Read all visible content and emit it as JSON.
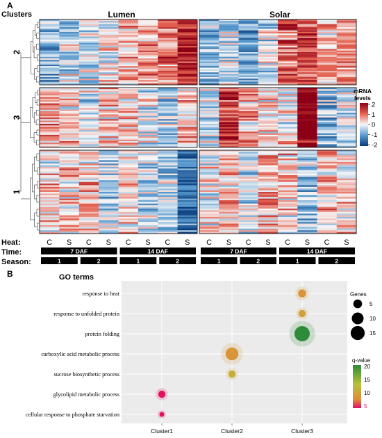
{
  "panel_a": {
    "label": "A",
    "clusters_title": "Clusters",
    "group_titles": [
      "Lumen",
      "Solar"
    ],
    "row_clusters": [
      {
        "label": "2",
        "rows": 42
      },
      {
        "label": "3",
        "rows": 38
      },
      {
        "label": "1",
        "rows": 50
      }
    ],
    "heat_label": "Heat:",
    "time_label": "Time:",
    "season_label": "Season:",
    "heat_values": [
      "C",
      "S",
      "C",
      "S",
      "C",
      "S",
      "C",
      "S"
    ],
    "time_values": [
      "7 DAF",
      "14 DAF"
    ],
    "season_values": [
      "1",
      "2",
      "1",
      "2"
    ],
    "legend": {
      "title_line1": "mRNA",
      "title_line2": "levels",
      "ticks": [
        "2",
        "1",
        "0",
        "-1",
        "-2"
      ],
      "colors": {
        "high": "#8b0016",
        "mid": "#f7f7f7",
        "low": "#0a3d7c"
      }
    },
    "column_bias": {
      "Lumen": {
        "2": [
          -0.6,
          -0.3,
          -0.4,
          0.1,
          0.3,
          0.6,
          0.7,
          1.3
        ],
        "3": [
          0.5,
          0.3,
          -0.2,
          0.3,
          0.2,
          -0.1,
          -0.5,
          0.3
        ],
        "1": [
          0.2,
          0.3,
          0.3,
          -0.4,
          0.2,
          -0.3,
          -0.4,
          -1.2
        ]
      },
      "Solar": {
        "2": [
          -0.5,
          -0.3,
          -0.7,
          -0.2,
          0.9,
          1.0,
          0.4,
          0.5
        ],
        "3": [
          -0.2,
          1.2,
          0.4,
          0.1,
          0.1,
          1.8,
          -0.6,
          -0.3
        ],
        "1": [
          0.1,
          0.4,
          -0.2,
          0.3,
          0.2,
          -0.5,
          0.3,
          0.1
        ]
      }
    }
  },
  "panel_b": {
    "label": "B",
    "go_title": "GO terms",
    "chart_data": {
      "type": "scatter",
      "title": "GO terms",
      "categories_x": [
        "Cluster1",
        "Cluster2",
        "Cluster3"
      ],
      "categories_y": [
        "response to heat",
        "response to unfolded protein",
        "protein folding",
        "carboxylic acid metabolic process",
        "sucrose biosynthetic process",
        "glycolipid metabolic process",
        "cellular response to phosphate starvation"
      ],
      "points": [
        {
          "x": "Cluster3",
          "y": "response to heat",
          "genes": 4,
          "qvalue": 9
        },
        {
          "x": "Cluster3",
          "y": "response to unfolded protein",
          "genes": 3,
          "qvalue": 10
        },
        {
          "x": "Cluster3",
          "y": "protein folding",
          "genes": 18,
          "qvalue": 20
        },
        {
          "x": "Cluster2",
          "y": "carboxylic acid metabolic process",
          "genes": 12,
          "qvalue": 9
        },
        {
          "x": "Cluster2",
          "y": "sucrose biosynthetic process",
          "genes": 3,
          "qvalue": 11
        },
        {
          "x": "Cluster1",
          "y": "glycolipid metabolic process",
          "genes": 3,
          "qvalue": 5
        },
        {
          "x": "Cluster1",
          "y": "cellular response to phosphate starvation",
          "genes": 1,
          "qvalue": 5
        }
      ],
      "size_legend": {
        "title": "Genes",
        "values": [
          "5",
          "10",
          "15"
        ]
      },
      "color_legend": {
        "title": "q-value",
        "ticks": [
          "20",
          "15",
          "10",
          "5"
        ],
        "colors": {
          "high": "#2e8b3a",
          "low": "#e0115f"
        }
      },
      "grid": true
    }
  }
}
